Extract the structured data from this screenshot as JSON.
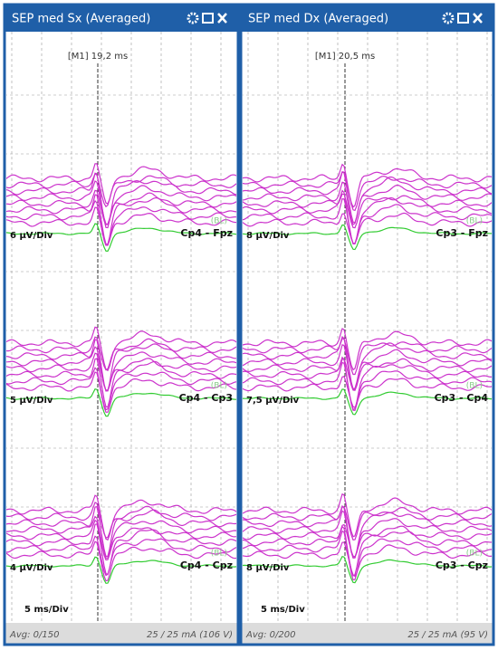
{
  "panels": [
    {
      "title": "SEP med Sx (Averaged)",
      "marker": "[M1] 19,2 ms",
      "channels": [
        {
          "scale": "6 µV/Div",
          "name": "Cp4 - Fpz",
          "tag": "(BL)"
        },
        {
          "scale": "5 µV/Div",
          "name": "Cp4 - Cp3",
          "tag": "(BL)"
        },
        {
          "scale": "4 µV/Div",
          "name": "Cp4 - Cpz",
          "tag": "(BL)"
        }
      ],
      "timebase": "5 ms/Div",
      "footer_left": "Avg: 0/150",
      "footer_right": "25 / 25 mA (106 V)"
    },
    {
      "title": "SEP med Dx (Averaged)",
      "marker": "[M1] 20,5 ms",
      "channels": [
        {
          "scale": "8 µV/Div",
          "name": "Cp3 - Fpz",
          "tag": "(BL)"
        },
        {
          "scale": "7,5 µV/Div",
          "name": "Cp3 - Cp4",
          "tag": "(BL)"
        },
        {
          "scale": "8 µV/Div",
          "name": "Cp3 - Cpz",
          "tag": "(BL)"
        }
      ],
      "timebase": "5 ms/Div",
      "footer_left": "Avg: 0/200",
      "footer_right": "25 / 25 mA (95 V)"
    }
  ]
}
